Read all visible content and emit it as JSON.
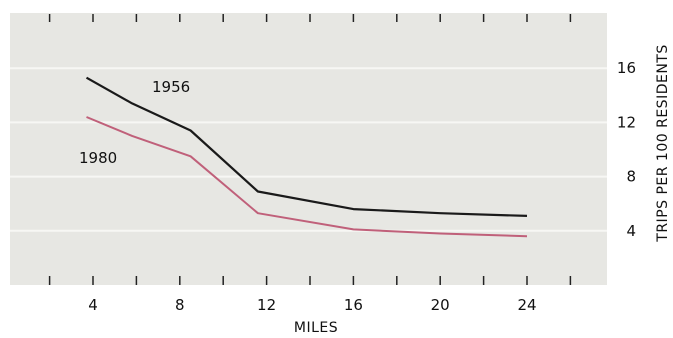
{
  "chart_data": {
    "type": "line",
    "xlabel": "MILES",
    "ylabel": "TRIPS PER 100 RESIDENTS",
    "xlim": [
      2,
      28
    ],
    "ylim": [
      0,
      19.5
    ],
    "x_ticks": [
      4,
      8,
      12,
      16,
      20,
      24
    ],
    "y_ticks": [
      4,
      8,
      12,
      16
    ],
    "grid": true,
    "series": [
      {
        "name": "1956",
        "color": "#1a1a1a",
        "x": [
          3.7,
          5.8,
          8.5,
          11.6,
          16,
          20,
          24
        ],
        "y": [
          15.3,
          13.4,
          11.4,
          6.9,
          5.6,
          5.3,
          5.1
        ]
      },
      {
        "name": "1980",
        "color": "#c0607a",
        "x": [
          3.7,
          5.8,
          8.5,
          11.6,
          16,
          20,
          24
        ],
        "y": [
          12.4,
          11.0,
          9.5,
          5.3,
          4.1,
          3.8,
          3.6
        ]
      }
    ]
  },
  "colors": {
    "plot_background": "#e7e7e3",
    "gridline": "#f7f7f4"
  }
}
